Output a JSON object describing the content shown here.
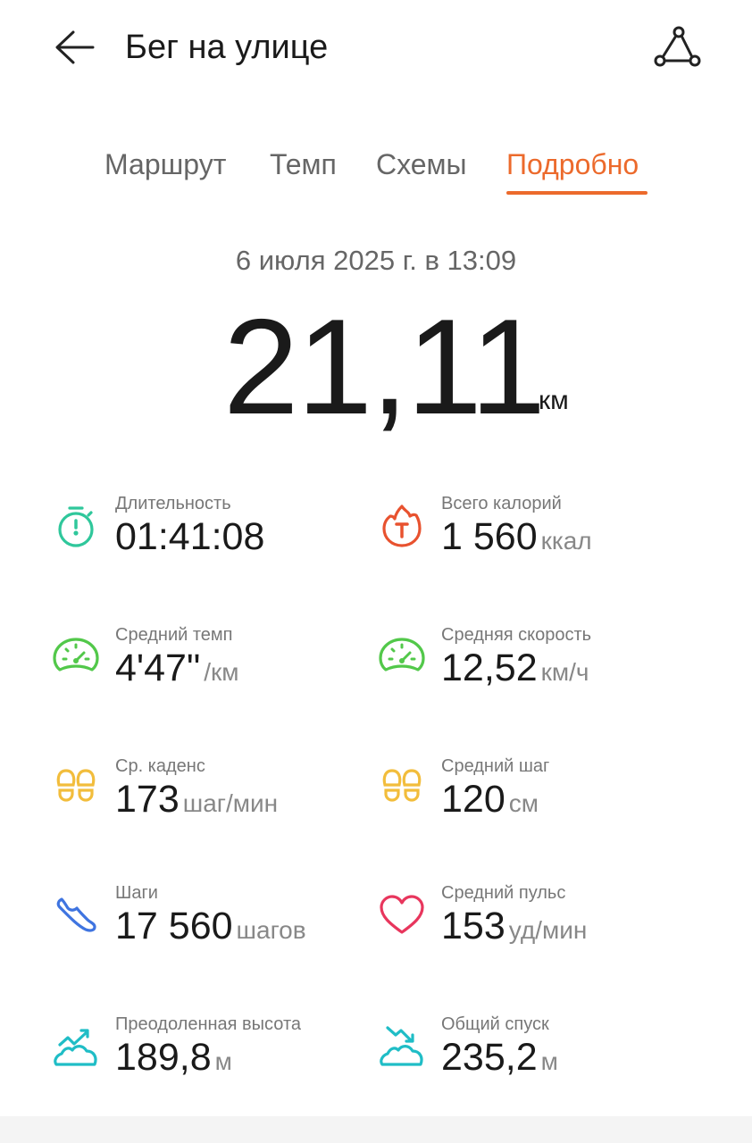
{
  "header": {
    "title": "Бег на улице",
    "back_icon": "arrow-left-icon",
    "share_icon": "route-share-icon"
  },
  "tabs": [
    {
      "label": "Маршрут"
    },
    {
      "label": "Темп"
    },
    {
      "label": "Схемы"
    },
    {
      "label": "Подробно",
      "active": true
    }
  ],
  "accent": "#ec6a2c",
  "summary": {
    "date": "6 июля 2025 г. в 13:09",
    "distance": "21,11",
    "distance_unit": "км"
  },
  "stats": [
    {
      "label": "Длительность",
      "value": "01:41:08",
      "unit": "",
      "icon": "stopwatch-icon",
      "color": "#2fc79b"
    },
    {
      "label": "Всего калорий",
      "value": "1 560",
      "unit": "ккал",
      "icon": "calorie-flame-icon",
      "color": "#e8522f"
    },
    {
      "label": "Средний темп",
      "value": "4'47\"",
      "unit": "/км",
      "icon": "speedometer-icon",
      "color": "#52c84a"
    },
    {
      "label": "Средняя скорость",
      "value": "12,52",
      "unit": "км/ч",
      "icon": "speedometer-icon",
      "color": "#52c84a"
    },
    {
      "label": "Ср. каденс",
      "value": "173",
      "unit": "шаг/мин",
      "icon": "footprints-icon",
      "color": "#f2bd3c"
    },
    {
      "label": "Средний шаг",
      "value": "120",
      "unit": "см",
      "icon": "footprints-icon",
      "color": "#f2bd3c"
    },
    {
      "label": "Шаги",
      "value": "17 560",
      "unit": "шагов",
      "icon": "shoe-icon",
      "color": "#3f74e0"
    },
    {
      "label": "Средний пульс",
      "value": "153",
      "unit": "уд/мин",
      "icon": "heart-icon",
      "color": "#e8365d"
    },
    {
      "label": "Преодоленная высота",
      "value": "189,8",
      "unit": "м",
      "icon": "elevation-up-icon",
      "color": "#1fbdc6"
    },
    {
      "label": "Общий спуск",
      "value": "235,2",
      "unit": "м",
      "icon": "elevation-down-icon",
      "color": "#1fbdc6"
    }
  ]
}
